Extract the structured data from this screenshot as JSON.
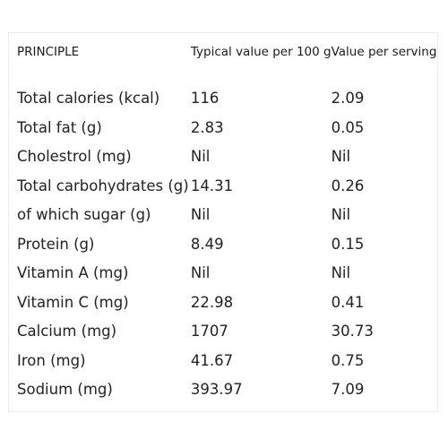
{
  "table": {
    "headers": {
      "principle": "PRINCIPLE",
      "typical": "Typical value per 100 g",
      "serving": "Value per serving"
    },
    "rows": [
      {
        "principle": "Total calories (kcal)",
        "typical": "116",
        "serving": "2.09"
      },
      {
        "principle": "Total fat (g)",
        "typical": "2.83",
        "serving": "0.05"
      },
      {
        "principle": "Cholestrol (mg)",
        "typical": "Nil",
        "serving": "Nil"
      },
      {
        "principle": "Total carbohydrates (g)",
        "typical": "14.31",
        "serving": "0.26"
      },
      {
        "principle": "of which sugar (g)",
        "typical": "Nil",
        "serving": "Nil"
      },
      {
        "principle": "Protein (g)",
        "typical": "8.49",
        "serving": "0.15"
      },
      {
        "principle": "Vitamin A (mg)",
        "typical": "Nil",
        "serving": "Nil"
      },
      {
        "principle": "Vitamin C (mg)",
        "typical": "22.98",
        "serving": "0.41"
      },
      {
        "principle": "Calcium (mg)",
        "typical": "1707",
        "serving": "30.73"
      },
      {
        "principle": "Iron (mg)",
        "typical": "41.67",
        "serving": "0.75"
      },
      {
        "principle": "Sodium (mg)",
        "typical": "393.97",
        "serving": "7.09"
      }
    ]
  }
}
